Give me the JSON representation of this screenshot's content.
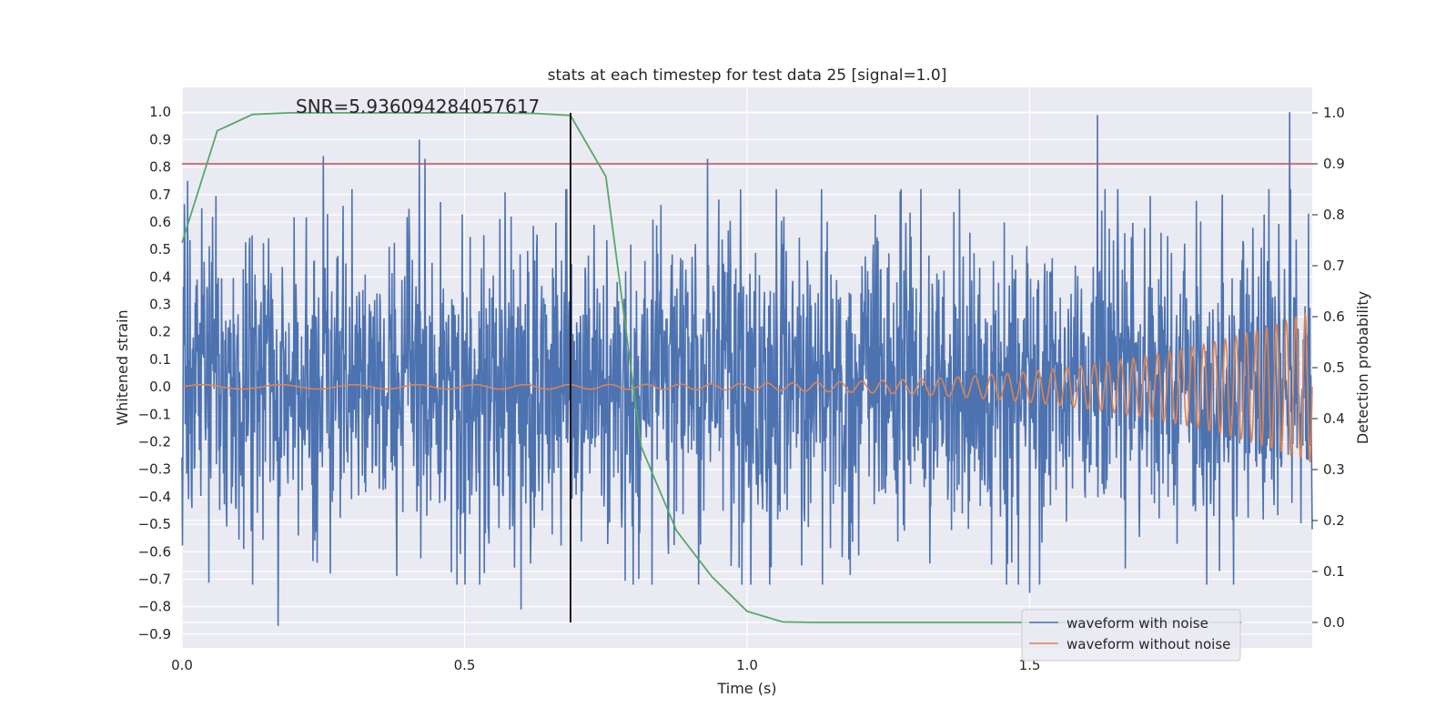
{
  "chart_data": {
    "type": "line",
    "title": "stats at each timestep for test data 25 [signal=1.0]",
    "annotation": "SNR=5.936094284057617",
    "xlabel": "Time (s)",
    "ylabel": "Whitened strain",
    "ylabel_right": "Detection probability",
    "xlim": [
      0.0,
      2.0
    ],
    "ylim": [
      -0.95,
      1.09
    ],
    "ylim_right": [
      -0.05,
      1.05
    ],
    "x_ticks": [
      0.0,
      0.5,
      1.0,
      1.5
    ],
    "x_tick_labels": [
      "0.0",
      "0.5",
      "1.0",
      "1.5"
    ],
    "y_ticks": [
      1.0,
      0.9,
      0.8,
      0.7,
      0.6,
      0.5,
      0.4,
      0.3,
      0.2,
      0.1,
      0.0,
      -0.1,
      -0.2,
      -0.3,
      -0.4,
      -0.5,
      -0.6,
      -0.7,
      -0.8,
      -0.9
    ],
    "y_tick_labels": [
      "1.0",
      "0.9",
      "0.8",
      "0.7",
      "0.6",
      "0.5",
      "0.4",
      "0.3",
      "0.2",
      "0.1",
      "0.0",
      "−0.1",
      "−0.2",
      "−0.3",
      "−0.4",
      "−0.5",
      "−0.6",
      "−0.7",
      "−0.8",
      "−0.9"
    ],
    "y_right_ticks": [
      1.0,
      0.9,
      0.8,
      0.7,
      0.6,
      0.5,
      0.4,
      0.3,
      0.2,
      0.1,
      0.0
    ],
    "y_right_tick_labels": [
      "1.0",
      "0.9",
      "0.8",
      "0.7",
      "0.6",
      "0.5",
      "0.4",
      "0.3",
      "0.2",
      "0.1",
      "0.0"
    ],
    "grid": true,
    "legend_position": "lower-right",
    "colors": {
      "background": "#eaeaf2",
      "grid": "#ffffff",
      "noisy": "#4c72b0",
      "clean": "#dd8452",
      "probability": "#55a868",
      "threshold": "#c44e52",
      "marker": "#000000"
    },
    "series": [
      {
        "name": "waveform with noise",
        "axis": "left",
        "noise_amplitude": 0.33,
        "seed": 25,
        "notable_peaks": [
          {
            "x": 0.01,
            "y": 0.75
          },
          {
            "x": 0.17,
            "y": -0.87
          },
          {
            "x": 0.25,
            "y": 0.84
          },
          {
            "x": 0.42,
            "y": 0.9
          },
          {
            "x": 0.43,
            "y": 0.83
          },
          {
            "x": 0.6,
            "y": -0.81
          },
          {
            "x": 0.93,
            "y": 0.83
          },
          {
            "x": 1.5,
            "y": -0.75
          },
          {
            "x": 1.62,
            "y": 0.99
          },
          {
            "x": 1.96,
            "y": 1.0
          }
        ]
      },
      {
        "name": "waveform without noise",
        "axis": "left",
        "start_amplitude": 0.008,
        "end_amplitude": 0.28
      },
      {
        "name": "detection probability",
        "axis": "right",
        "x": [
          0.0,
          0.0625,
          0.125,
          0.1875,
          0.25,
          0.3125,
          0.375,
          0.4375,
          0.5,
          0.5625,
          0.625,
          0.6875,
          0.75,
          0.8125,
          0.875,
          0.9375,
          1.0,
          1.0625,
          1.125,
          1.1875,
          1.25,
          1.3125,
          1.375,
          1.4375,
          1.5,
          1.5625,
          1.625,
          1.6875,
          1.75,
          1.8125,
          1.875
        ],
        "y": [
          0.745,
          0.965,
          0.997,
          1.0,
          1.0,
          1.0,
          1.0,
          1.0,
          1.0,
          1.0,
          0.999,
          0.995,
          0.875,
          0.345,
          0.18,
          0.09,
          0.022,
          0.001,
          0.0,
          0.0,
          0.0,
          0.0,
          0.0,
          0.0,
          0.0,
          0.0,
          0.0,
          0.0,
          0.0,
          0.0,
          0.0
        ]
      }
    ],
    "hlines": [
      {
        "axis": "right",
        "y": 0.9
      }
    ],
    "vlines": [
      {
        "x": 0.6875,
        "y_from": 0.0,
        "y_to": 1.0,
        "axis": "right"
      }
    ],
    "legend": [
      {
        "label": "waveform with noise",
        "color": "#4c72b0"
      },
      {
        "label": "waveform without noise",
        "color": "#dd8452"
      }
    ]
  }
}
